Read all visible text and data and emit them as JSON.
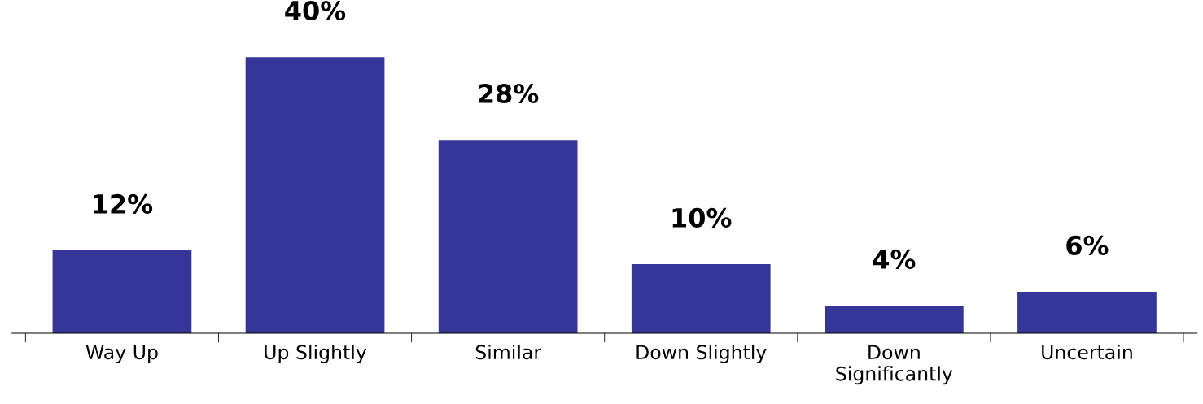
{
  "chart_data": {
    "type": "bar",
    "categories": [
      "Way Up",
      "Up Slightly",
      "Similar",
      "Down Slightly",
      "Down\nSignificantly",
      "Uncertain"
    ],
    "values": [
      12,
      40,
      28,
      10,
      4,
      6
    ],
    "value_labels": [
      "12%",
      "40%",
      "28%",
      "10%",
      "4%",
      "6%"
    ],
    "color": "#363699",
    "grid": false,
    "legend": false
  }
}
